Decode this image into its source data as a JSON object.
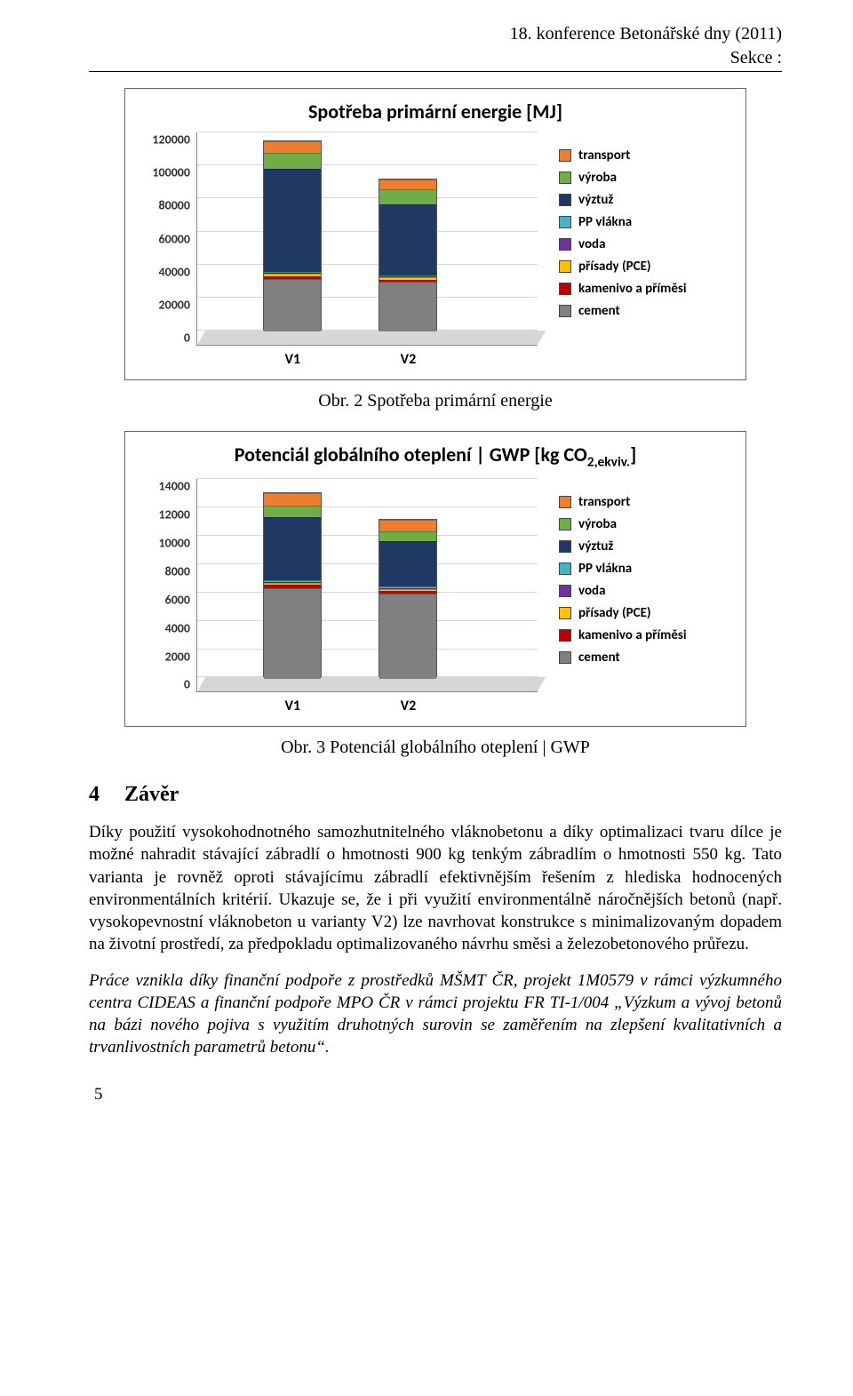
{
  "header": {
    "line1": "18. konference Betonářské dny (2011)",
    "line2": "Sekce :"
  },
  "colors": {
    "transport": "#ed7d31",
    "vyroba": "#70ad47",
    "vyztuz": "#1f3864",
    "pp_vlakna": "#44b3c2",
    "voda": "#7030a0",
    "prisady": "#ffc000",
    "kamenivo": "#c00000",
    "cement": "#808080",
    "grid": "#d8d8d8",
    "border": "#888888",
    "floor": "#cfcfcf"
  },
  "legend": [
    {
      "key": "transport",
      "label": "transport"
    },
    {
      "key": "vyroba",
      "label": "výroba"
    },
    {
      "key": "vyztuz",
      "label": "výztuž"
    },
    {
      "key": "pp_vlakna",
      "label": "PP vlákna"
    },
    {
      "key": "voda",
      "label": "voda"
    },
    {
      "key": "prisady",
      "label": "přísady (PCE)"
    },
    {
      "key": "kamenivo",
      "label": "kamenivo a příměsi"
    },
    {
      "key": "cement",
      "label": "cement"
    }
  ],
  "chart1": {
    "type": "stacked-bar-3d",
    "title": "Spotřeba primární energie [MJ]",
    "ymax": 120000,
    "yticks": [
      0,
      20000,
      40000,
      60000,
      80000,
      100000,
      120000
    ],
    "categories": [
      "V1",
      "V2"
    ],
    "bar_positions_pct": [
      28,
      62
    ],
    "series_order_bottom_to_top": [
      "cement",
      "kamenivo",
      "prisady",
      "voda",
      "pp_vlakna",
      "vyztuz",
      "vyroba",
      "transport"
    ],
    "data": {
      "V1": {
        "cement": 32000,
        "kamenivo": 1500,
        "prisady": 1500,
        "voda": 500,
        "pp_vlakna": 800,
        "vyztuz": 62000,
        "vyroba": 10000,
        "transport": 7000
      },
      "V2": {
        "cement": 30000,
        "kamenivo": 1500,
        "prisady": 1200,
        "voda": 500,
        "pp_vlakna": 800,
        "vyztuz": 43000,
        "vyroba": 9000,
        "transport": 6000
      }
    }
  },
  "caption1": "Obr. 2 Spotřeba primární energie",
  "chart2": {
    "type": "stacked-bar-3d",
    "title_html": "Potenciál globálního oteplení | GWP [kg CO<sub>2,ekviv.</sub>]",
    "ymax": 14000,
    "yticks": [
      0,
      2000,
      4000,
      6000,
      8000,
      10000,
      12000,
      14000
    ],
    "categories": [
      "V1",
      "V2"
    ],
    "bar_positions_pct": [
      28,
      62
    ],
    "series_order_bottom_to_top": [
      "cement",
      "kamenivo",
      "prisady",
      "voda",
      "pp_vlakna",
      "vyztuz",
      "vyroba",
      "transport"
    ],
    "data": {
      "V1": {
        "cement": 6400,
        "kamenivo": 200,
        "prisady": 150,
        "voda": 50,
        "pp_vlakna": 100,
        "vyztuz": 4500,
        "vyroba": 800,
        "transport": 900
      },
      "V2": {
        "cement": 6000,
        "kamenivo": 200,
        "prisady": 120,
        "voda": 50,
        "pp_vlakna": 100,
        "vyztuz": 3200,
        "vyroba": 700,
        "transport": 800
      }
    }
  },
  "caption2": "Obr. 3  Potenciál globálního oteplení | GWP",
  "section": {
    "number": "4",
    "title": "Závěr"
  },
  "paragraphs": {
    "p1": "Díky použití vysokohodnotného samozhutnitelného vláknobetonu a díky optimalizaci tvaru dílce je možné nahradit stávající zábradlí o hmotnosti 900 kg tenkým zábradlím o hmotnosti 550 kg. Tato varianta je rovněž oproti stávajícímu zábradlí efektivnějším řešením z hlediska hodnocených environmentálních kritérií. Ukazuje se, že i při využití environmentálně náročnějších betonů (např. vysokopevnostní vláknobeton u varianty V2) lze navrhovat konstrukce s minimalizovaným dopadem na životní prostředí, za předpokladu optimalizovaného návrhu směsi a železobetonového průřezu.",
    "p2": "Práce vznikla díky finanční podpoře z prostředků MŠMT ČR, projekt 1M0579 v rámci výzkumného centra CIDEAS a finanční podpoře MPO ČR v rámci projektu FR TI-1/004 „Výzkum a vývoj betonů na bázi nového pojiva s využitím druhotných surovin se zaměřením na zlepšení kvalitativních a trvanlivostních parametrů betonu“."
  },
  "pagenum": "5"
}
